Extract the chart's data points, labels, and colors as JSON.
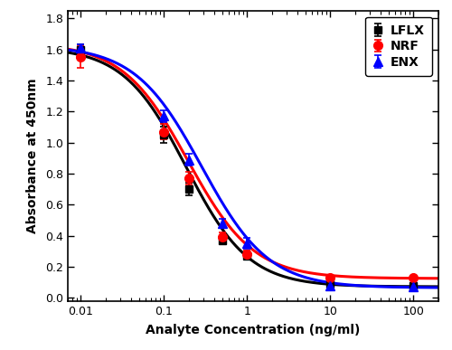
{
  "title": "",
  "xlabel": "Analyte Concentration (ng/ml)",
  "ylabel": "Absorbance at 450nm",
  "xlim": [
    0.007,
    200
  ],
  "ylim": [
    -0.02,
    1.85
  ],
  "yticks": [
    0.0,
    0.2,
    0.4,
    0.6,
    0.8,
    1.0,
    1.2,
    1.4,
    1.6,
    1.8
  ],
  "series": [
    {
      "label": "LFLX",
      "color": "black",
      "marker": "s",
      "markersize": 6,
      "x": [
        0.01,
        0.1,
        0.2,
        0.5,
        1.0,
        10.0,
        100.0
      ],
      "y": [
        1.6,
        1.05,
        0.7,
        0.37,
        0.27,
        0.09,
        0.08
      ],
      "yerr": [
        0.03,
        0.05,
        0.04,
        0.025,
        0.025,
        0.02,
        0.015
      ],
      "sigmoid_params": {
        "top": 1.615,
        "bottom": 0.072,
        "ec50": 0.185,
        "hill": 1.15
      }
    },
    {
      "label": "NRF",
      "color": "red",
      "marker": "o",
      "markersize": 7,
      "x": [
        0.01,
        0.1,
        0.2,
        0.5,
        1.0,
        10.0,
        100.0
      ],
      "y": [
        1.55,
        1.07,
        0.77,
        0.39,
        0.28,
        0.13,
        0.13
      ],
      "yerr": [
        0.07,
        0.05,
        0.04,
        0.03,
        0.025,
        0.02,
        0.01
      ],
      "sigmoid_params": {
        "top": 1.64,
        "bottom": 0.125,
        "ec50": 0.195,
        "hill": 1.1
      }
    },
    {
      "label": "ENX",
      "color": "blue",
      "marker": "^",
      "markersize": 7,
      "x": [
        0.01,
        0.1,
        0.2,
        0.5,
        1.0,
        10.0,
        100.0
      ],
      "y": [
        1.61,
        1.17,
        0.89,
        0.48,
        0.35,
        0.08,
        0.07
      ],
      "yerr": [
        0.02,
        0.04,
        0.04,
        0.03,
        0.035,
        0.015,
        0.012
      ],
      "sigmoid_params": {
        "top": 1.625,
        "bottom": 0.065,
        "ec50": 0.285,
        "hill": 1.08
      }
    }
  ],
  "legend_loc": "upper right",
  "figsize": [
    5.0,
    3.87
  ],
  "dpi": 100
}
